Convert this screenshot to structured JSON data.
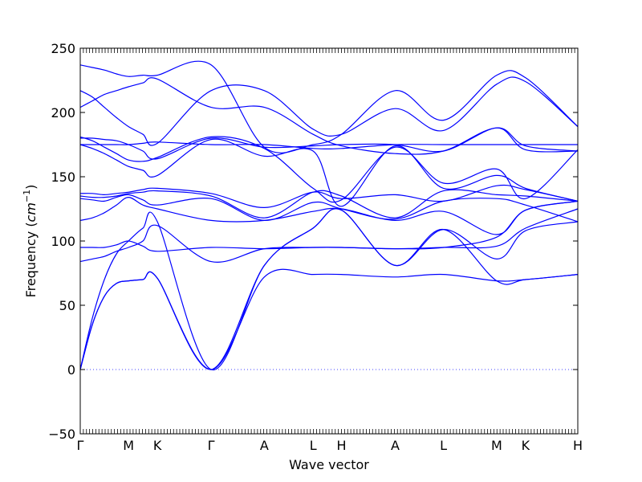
{
  "chart_data": {
    "type": "line",
    "title": "",
    "xlabel": "Wave vector",
    "ylabel": "Frequency",
    "ylabel_unit": "cm",
    "ylabel_unit_exponent": "−1",
    "ylim": [
      -50,
      250
    ],
    "yticks": [
      -50,
      0,
      50,
      100,
      150,
      200,
      250
    ],
    "ytick_labels": [
      "−50",
      "0",
      "50",
      "100",
      "150",
      "200",
      "250"
    ],
    "grid": false,
    "line_color": "#0000ff",
    "zero_line_color": "#4040ff",
    "k_path_labels": [
      "Γ",
      "M",
      "K",
      "Γ",
      "A",
      "L",
      "H",
      "A",
      "L",
      "M",
      "K",
      "H"
    ],
    "k_path_positions": [
      0,
      0.097,
      0.155,
      0.263,
      0.37,
      0.468,
      0.525,
      0.633,
      0.73,
      0.837,
      0.895,
      1.0
    ],
    "series": [
      {
        "x": [
          0,
          0.0243,
          0.0485,
          0.0728,
          0.097,
          0.126,
          0.155,
          0.263,
          0.37,
          0.468,
          0.525,
          0.633,
          0.73,
          0.837,
          0.895,
          1.0
        ],
        "y": [
          0,
          35,
          57,
          67,
          69,
          70,
          71,
          0,
          72,
          74,
          74,
          72,
          74,
          69,
          70,
          74
        ]
      },
      {
        "x": [
          0,
          0.0243,
          0.0485,
          0.0728,
          0.097,
          0.126,
          0.155,
          0.263,
          0.37,
          0.468,
          0.525,
          0.633,
          0.73,
          0.837,
          0.895,
          1.0
        ],
        "y": [
          0,
          35,
          57,
          67,
          69,
          70,
          71,
          0,
          81,
          110,
          124,
          81,
          109,
          69,
          70,
          74
        ]
      },
      {
        "x": [
          0,
          0.0243,
          0.0485,
          0.0728,
          0.097,
          0.126,
          0.155,
          0.263,
          0.37,
          0.468,
          0.525,
          0.633,
          0.73,
          0.837,
          0.895,
          1.0
        ],
        "y": [
          0,
          40,
          70,
          90,
          100,
          110,
          115,
          0,
          81,
          110,
          124,
          81,
          109,
          86,
          108,
          115
        ]
      },
      {
        "x": [
          0,
          0.0243,
          0.0485,
          0.0728,
          0.097,
          0.126,
          0.155,
          0.263,
          0.37,
          0.468,
          0.525,
          0.633,
          0.73,
          0.837,
          0.895,
          1.0
        ],
        "y": [
          84,
          86,
          88,
          92,
          95,
          100,
          112,
          84,
          94,
          95,
          95,
          94,
          95,
          96,
          110,
          125
        ]
      },
      {
        "x": [
          0,
          0.0243,
          0.0485,
          0.0728,
          0.097,
          0.126,
          0.155,
          0.263,
          0.37,
          0.468,
          0.525,
          0.633,
          0.73,
          0.837,
          0.895,
          1.0
        ],
        "y": [
          95,
          95,
          95,
          97,
          100,
          96,
          92,
          95,
          94,
          95,
          95,
          94,
          95,
          103,
          124,
          131
        ]
      },
      {
        "x": [
          0,
          0.0243,
          0.0485,
          0.0728,
          0.097,
          0.126,
          0.155,
          0.263,
          0.37,
          0.468,
          0.525,
          0.633,
          0.73,
          0.837,
          0.895,
          1.0
        ],
        "y": [
          116,
          118,
          122,
          128,
          134,
          128,
          125,
          116,
          116,
          123,
          125,
          116,
          123,
          105,
          124,
          131
        ]
      },
      {
        "x": [
          0,
          0.0243,
          0.0485,
          0.0728,
          0.097,
          0.126,
          0.155,
          0.263,
          0.37,
          0.468,
          0.525,
          0.633,
          0.73,
          0.837,
          0.895,
          1.0
        ],
        "y": [
          133,
          132,
          131,
          134,
          136,
          132,
          128,
          133,
          116,
          130,
          125,
          117,
          131,
          133,
          128,
          115
        ]
      },
      {
        "x": [
          0,
          0.0243,
          0.0485,
          0.0728,
          0.097,
          0.126,
          0.155,
          0.263,
          0.37,
          0.468,
          0.525,
          0.633,
          0.73,
          0.837,
          0.895,
          1.0
        ],
        "y": [
          135,
          134,
          134,
          135,
          137,
          138,
          139,
          135,
          118,
          138,
          135,
          118,
          139,
          136,
          135,
          131
        ]
      },
      {
        "x": [
          0,
          0.0243,
          0.0485,
          0.0728,
          0.097,
          0.126,
          0.155,
          0.263,
          0.37,
          0.468,
          0.525,
          0.633,
          0.73,
          0.837,
          0.895,
          1.0
        ],
        "y": [
          137,
          137,
          136,
          137,
          138,
          140,
          141,
          137,
          126,
          138,
          133,
          136,
          131,
          143,
          140,
          131
        ]
      },
      {
        "x": [
          0,
          0.0243,
          0.0485,
          0.0728,
          0.097,
          0.126,
          0.155,
          0.263,
          0.37,
          0.468,
          0.525,
          0.633,
          0.73,
          0.837,
          0.895,
          1.0
        ],
        "y": [
          175,
          172,
          168,
          163,
          158,
          155,
          151,
          179,
          166,
          170,
          127,
          174,
          141,
          151,
          141,
          131
        ]
      },
      {
        "x": [
          0,
          0.0243,
          0.0485,
          0.0728,
          0.097,
          0.126,
          0.155,
          0.263,
          0.37,
          0.468,
          0.525,
          0.633,
          0.73,
          0.837,
          0.895,
          1.0
        ],
        "y": [
          181,
          178,
          173,
          168,
          163,
          162,
          165,
          181,
          172,
          141,
          132,
          173,
          145,
          156,
          133,
          171
        ]
      },
      {
        "x": [
          0,
          0.0243,
          0.0485,
          0.0728,
          0.097,
          0.126,
          0.155,
          0.263,
          0.37,
          0.468,
          0.525,
          0.633,
          0.73,
          0.837,
          0.895,
          1.0
        ],
        "y": [
          175,
          175,
          175,
          175,
          175,
          176,
          177,
          175,
          175,
          172,
          172,
          175,
          175,
          175,
          175,
          175
        ]
      },
      {
        "x": [
          0,
          0.0243,
          0.0485,
          0.0728,
          0.097,
          0.126,
          0.155,
          0.263,
          0.37,
          0.468,
          0.525,
          0.633,
          0.73,
          0.837,
          0.895,
          1.0
        ],
        "y": [
          180,
          180,
          179,
          178,
          175,
          170,
          164,
          180,
          173,
          174,
          175,
          175,
          170,
          188,
          174,
          170
        ]
      },
      {
        "x": [
          0,
          0.0243,
          0.0485,
          0.0728,
          0.097,
          0.126,
          0.155,
          0.263,
          0.37,
          0.468,
          0.525,
          0.633,
          0.73,
          0.837,
          0.895,
          1.0
        ],
        "y": [
          204,
          209,
          214,
          217,
          220,
          223,
          226,
          204,
          204,
          183,
          174,
          168,
          170,
          188,
          171,
          170
        ]
      },
      {
        "x": [
          0,
          0.0243,
          0.0485,
          0.0728,
          0.097,
          0.126,
          0.155,
          0.263,
          0.37,
          0.468,
          0.525,
          0.633,
          0.73,
          0.837,
          0.895,
          1.0
        ],
        "y": [
          217,
          212,
          204,
          196,
          189,
          183,
          176,
          217,
          217,
          187,
          183,
          203,
          186,
          222,
          224,
          189
        ]
      },
      {
        "x": [
          0,
          0.0243,
          0.0485,
          0.0728,
          0.097,
          0.126,
          0.155,
          0.263,
          0.37,
          0.468,
          0.525,
          0.633,
          0.73,
          0.837,
          0.895,
          1.0
        ],
        "y": [
          237,
          235,
          233,
          230,
          228,
          229,
          229,
          237,
          173,
          175,
          183,
          217,
          194,
          229,
          227,
          189
        ]
      }
    ]
  }
}
